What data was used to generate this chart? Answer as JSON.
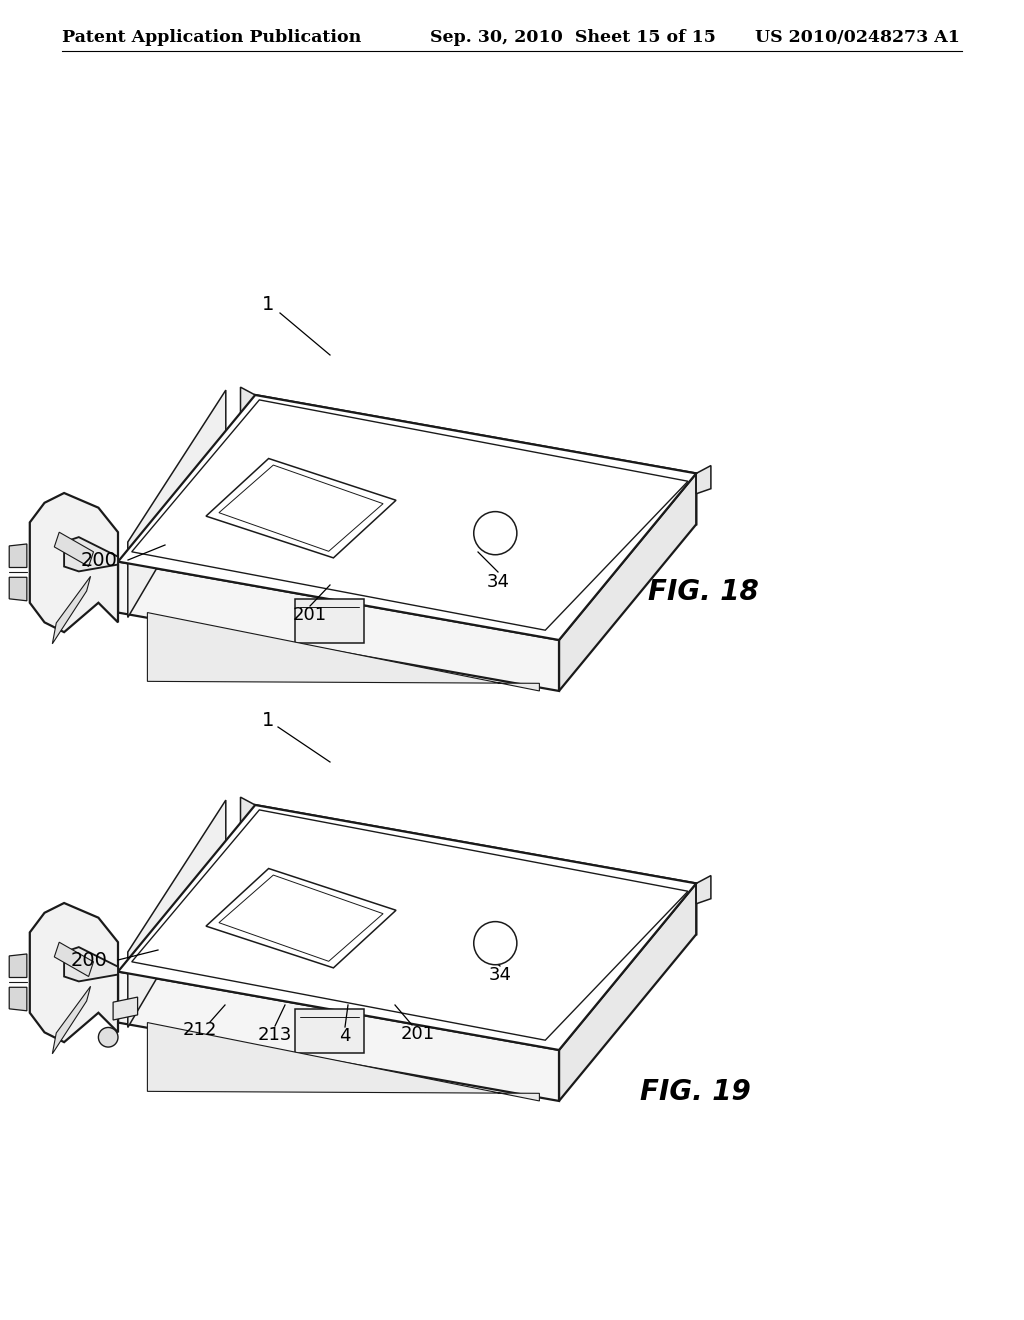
{
  "background_color": "#ffffff",
  "header": {
    "left": "Patent Application Publication",
    "center": "Sep. 30, 2010  Sheet 15 of 15",
    "right": "US 2010/0248273 A1",
    "fontsize": 12.5
  },
  "fig18_label": "FIG. 18",
  "fig19_label": "FIG. 19",
  "line_color": "#1a1a1a",
  "face_color": "#ffffff",
  "shadow_color": "#e8e8e8"
}
